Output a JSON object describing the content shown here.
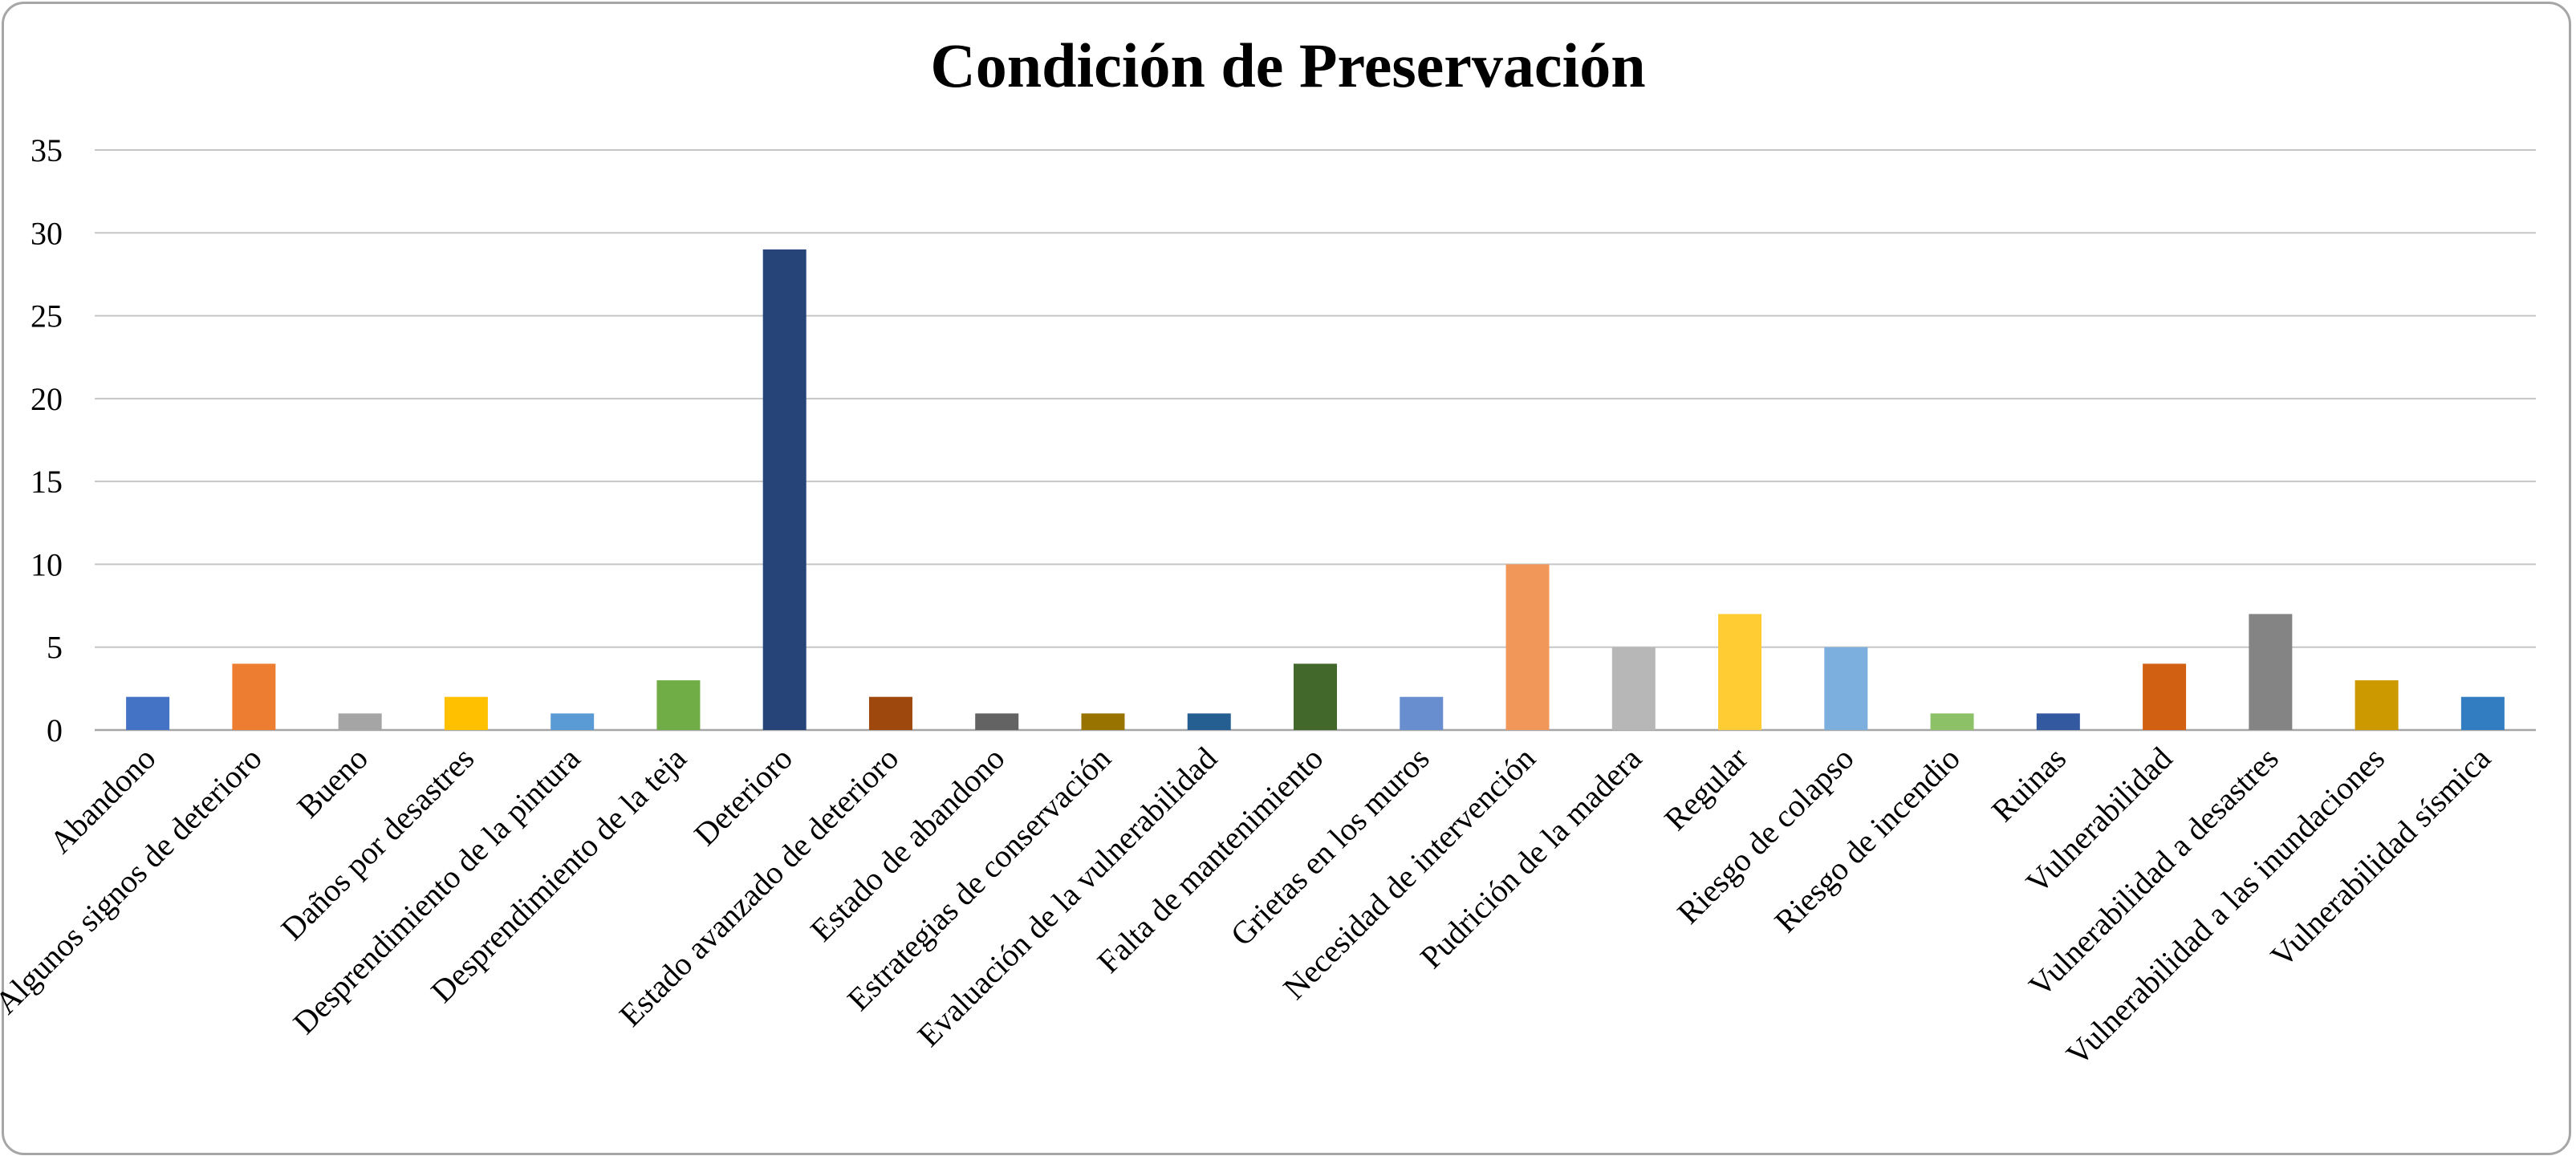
{
  "chart_data": {
    "type": "bar",
    "title": "Condición de Preservación",
    "xlabel": "",
    "ylabel": "",
    "ylim": [
      0,
      35
    ],
    "yticks": [
      0,
      5,
      10,
      15,
      20,
      25,
      30,
      35
    ],
    "grid": true,
    "legend": "none",
    "categories": [
      "Abandono",
      "Algunos signos de deterioro",
      "Bueno",
      "Daños por desastres",
      "Desprendimiento de la pintura",
      "Desprendimiento de la teja",
      "Deterioro",
      "Estado avanzado de deterioro",
      "Estado de abandono",
      "Estrategias de conservación",
      "Evaluación de la vulnerabilidad",
      "Falta de mantenimiento",
      "Grietas en los muros",
      "Necesidad de intervención",
      "Pudrición de la madera",
      "Regular",
      "Riesgo de colapso",
      "Riesgo de incendio",
      "Ruinas",
      "Vulnerabilidad",
      "Vulnerabilidad a desastres",
      "Vulnerabilidad a las inundaciones",
      "Vulnerabilidad sísmica"
    ],
    "values": [
      2,
      4,
      1,
      2,
      1,
      3,
      29,
      2,
      1,
      1,
      1,
      4,
      2,
      10,
      5,
      7,
      5,
      1,
      1,
      4,
      7,
      3,
      2
    ],
    "colors": [
      "#4472c4",
      "#ed7d31",
      "#a5a5a5",
      "#ffc000",
      "#5b9bd5",
      "#70ad47",
      "#264478",
      "#9e480e",
      "#636363",
      "#997300",
      "#255e91",
      "#43682b",
      "#698ed0",
      "#f1975a",
      "#b7b7b7",
      "#ffcd33",
      "#7cafdd",
      "#8cc168",
      "#335aa1",
      "#d26012",
      "#848484",
      "#cc9a00",
      "#327dc2"
    ]
  }
}
